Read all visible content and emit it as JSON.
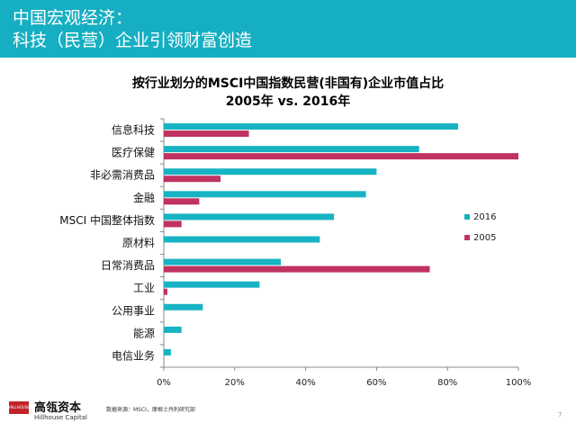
{
  "header": {
    "line1": "中国宏观经济：",
    "line2": "科技（民营）企业引领财富创造"
  },
  "chart_data": {
    "type": "bar",
    "orientation": "horizontal",
    "title": "按行业划分的MSCI中国指数民营(非国有)企业市值占比",
    "subtitle": "2005年 vs. 2016年",
    "categories": [
      "信息科技",
      "医疗保健",
      "非必需消费品",
      "金融",
      "MSCI 中国整体指数",
      "原材料",
      "日常消费品",
      "工业",
      "公用事业",
      "能源",
      "电信业务"
    ],
    "series": [
      {
        "name": "2016",
        "color": "#17b3c3",
        "values": [
          83,
          72,
          60,
          57,
          48,
          44,
          33,
          27,
          11,
          5,
          2
        ]
      },
      {
        "name": "2005",
        "color": "#c0325f",
        "values": [
          24,
          100,
          16,
          10,
          5,
          null,
          75,
          1,
          null,
          null,
          null
        ]
      }
    ],
    "x_ticks": [
      "0%",
      "20%",
      "40%",
      "60%",
      "80%",
      "100%"
    ],
    "xlim": [
      0,
      100
    ],
    "legend_position": "right",
    "grid": false
  },
  "footer": {
    "logo_box_text": "HILLHOUSE",
    "logo_cn": "高瓴资本",
    "logo_en": "Hillhouse Capital",
    "source": "数据来源：MSCI，摩根士丹利研究部",
    "page_number": "7"
  }
}
